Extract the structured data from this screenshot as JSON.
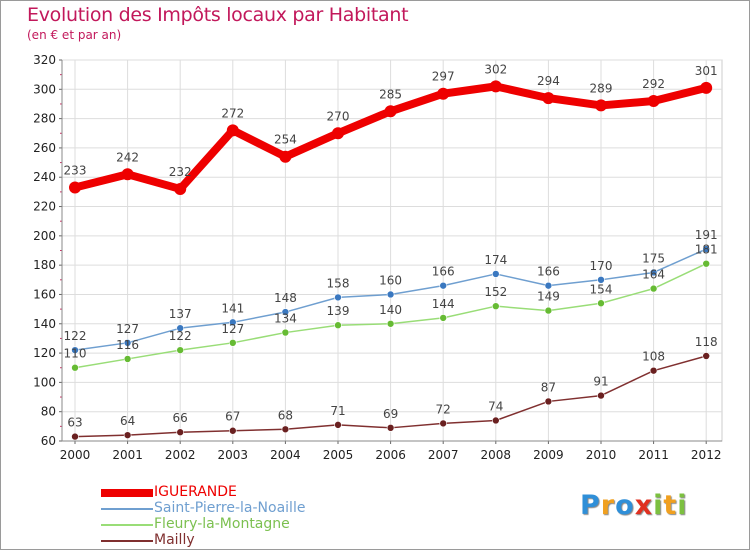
{
  "title": "Evolution des Impôts locaux par Habitant",
  "subtitle": "(en € et par an)",
  "logo": {
    "text": "Proxiti",
    "letters": [
      "P",
      "r",
      "o",
      "x",
      "i",
      "t",
      "i"
    ],
    "colors": [
      "#2f8fd8",
      "#f0a020",
      "#2f8fd8",
      "#e03020",
      "#7cc040",
      "#f0a020",
      "#7cc040"
    ]
  },
  "chart_data": {
    "type": "line",
    "title": "Evolution des Impôts locaux par Habitant",
    "subtitle": "(en € et par an)",
    "xlabel": "",
    "ylabel": "",
    "x": [
      "2000",
      "2001",
      "2002",
      "2003",
      "2004",
      "2005",
      "2006",
      "2007",
      "2008",
      "2009",
      "2010",
      "2011",
      "2012"
    ],
    "ylim": [
      60,
      320
    ],
    "yticks": [
      60,
      80,
      100,
      120,
      140,
      160,
      180,
      200,
      220,
      240,
      260,
      280,
      300,
      320
    ],
    "grid": true,
    "legend_position": "bottom-left",
    "series": [
      {
        "name": "IGUERANDE",
        "color": "#ee0000",
        "values": [
          233,
          242,
          232,
          272,
          254,
          270,
          285,
          297,
          302,
          294,
          289,
          292,
          301
        ]
      },
      {
        "name": "Saint-Pierre-la-Noaille",
        "color": "#6f9fd0",
        "marker": "#3a78c0",
        "values": [
          122,
          127,
          137,
          141,
          148,
          158,
          160,
          166,
          174,
          166,
          170,
          175,
          191
        ]
      },
      {
        "name": "Fleury-la-Montagne",
        "color": "#99dd77",
        "marker": "#66bb33",
        "values": [
          110,
          116,
          122,
          127,
          134,
          139,
          140,
          144,
          152,
          149,
          154,
          164,
          181
        ]
      },
      {
        "name": "Mailly",
        "color": "#803030",
        "marker": "#6a2020",
        "values": [
          63,
          64,
          66,
          67,
          68,
          71,
          69,
          72,
          74,
          87,
          91,
          108,
          118
        ]
      }
    ]
  }
}
